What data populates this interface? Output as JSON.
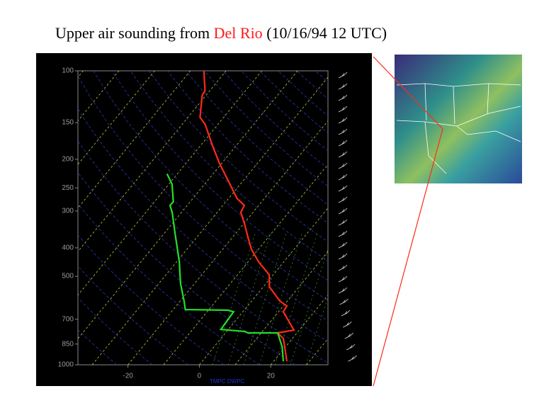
{
  "title_parts": [
    "Upper air sounding from ",
    "Del Rio",
    " (10/16/94 12 UTC)"
  ],
  "chart_data": {
    "type": "skewt",
    "x_label": "TMPC DWPC",
    "ylog": true,
    "ylim": [
      1000,
      100
    ],
    "yticks": [
      1000,
      850,
      700,
      500,
      400,
      300,
      250,
      200,
      150,
      100
    ],
    "xlim": [
      -34,
      36
    ],
    "xticks": [
      -20,
      0,
      20
    ],
    "series": [
      {
        "color": "#ff2a1a",
        "pressure": [
          973,
          814,
          779,
          762,
          660,
          631,
          607,
          543,
          494,
          447,
          405,
          368,
          330,
          303,
          287,
          272,
          230,
          206,
          179,
          152,
          144,
          121,
          117,
          100
        ],
        "values": [
          23.7,
          17.5,
          14.6,
          18.5,
          11.3,
          11.0,
          7.9,
          1.7,
          -1.1,
          -7.0,
          -11.9,
          -15.7,
          -19.9,
          -23.4,
          -24.0,
          -27.6,
          -35.5,
          -40.7,
          -46.8,
          -53.6,
          -56.6,
          -61.1,
          -61.3,
          -66.2
        ]
      },
      {
        "color": "#22e02a",
        "pressure": [
          973,
          870,
          779,
          779,
          770,
          758,
          660,
          652,
          649,
          607,
          528,
          447,
          358,
          303,
          287,
          279,
          243,
          224
        ],
        "values": [
          22.7,
          19.1,
          14.6,
          6.3,
          5.0,
          -2.1,
          -2.6,
          -4.5,
          -16.6,
          -18.9,
          -24.0,
          -29.2,
          -36.9,
          -42.6,
          -44.8,
          -44.7,
          -49.1,
          -52.9
        ]
      }
    ]
  }
}
